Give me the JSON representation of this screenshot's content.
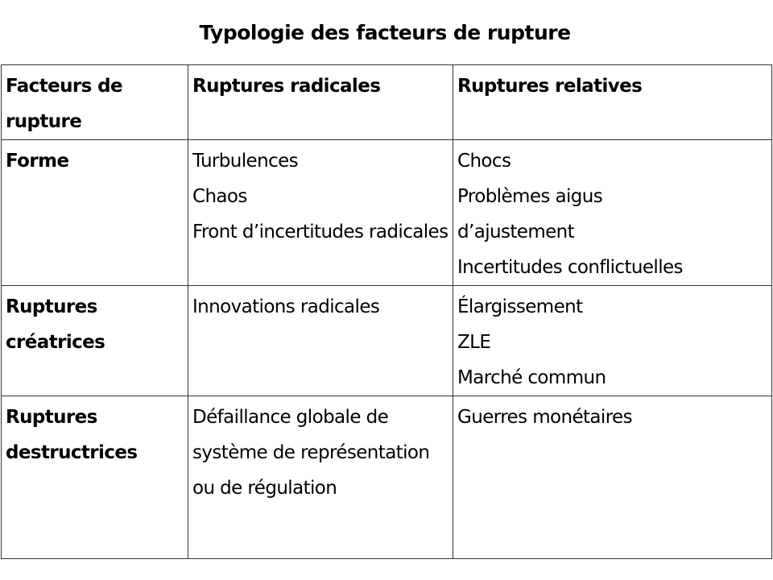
{
  "title": "Typologie des facteurs de rupture",
  "headers": [
    "Facteurs de rupture",
    "Ruptures radicales",
    "Ruptures relatives"
  ],
  "rows": [
    {
      "factor": "Forme",
      "radicales": [
        "Turbulences",
        "Chaos",
        "Front d’incertitudes radicales"
      ],
      "relatives": [
        "Chocs",
        "Problèmes aigus d’ajustement",
        "Incertitudes conflictuelles"
      ]
    },
    {
      "factor": "Ruptures créatrices",
      "radicales": [
        "Innovations radicales"
      ],
      "relatives": [
        "Élargissement",
        "ZLE",
        "Marché commun"
      ]
    },
    {
      "factor": "Ruptures destructrices",
      "radicales": [
        "Défaillance globale de système de représentation ou de régulation"
      ],
      "relatives": [
        "Guerres monétaires"
      ]
    }
  ]
}
